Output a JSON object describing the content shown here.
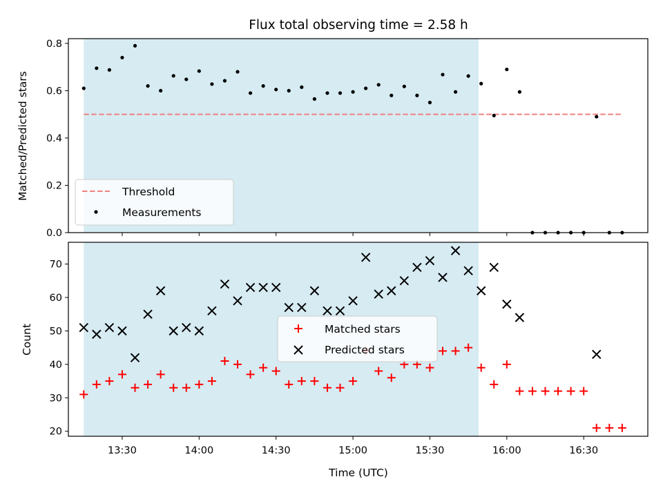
{
  "chart_data": {
    "type": "scatter",
    "title": "Flux total observing time = 2.58 h",
    "xlabel": "Time (UTC)",
    "x_tick_labels": [
      "13:30",
      "14:00",
      "14:30",
      "15:00",
      "15:30",
      "16:00",
      "16:30"
    ],
    "x_tick_times": [
      "13:30",
      "14:00",
      "14:30",
      "15:00",
      "15:30",
      "16:00",
      "16:30"
    ],
    "xlim": [
      "13:09",
      "16:55"
    ],
    "shaded_span": [
      "13:15",
      "15:49"
    ],
    "shade_color": "#add8e6",
    "top": {
      "ylabel": "Matched/Predicted stars",
      "ylim": [
        0,
        0.82
      ],
      "y_ticks": [
        0.0,
        0.2,
        0.4,
        0.6,
        0.8
      ],
      "y_tick_labels": [
        "0.0",
        "0.2",
        "0.4",
        "0.6",
        "0.8"
      ],
      "legend": {
        "placement": "lower-left",
        "entries": [
          "Threshold",
          "Measurements"
        ]
      },
      "threshold": {
        "name": "Threshold",
        "value": 0.5,
        "x_range": [
          "13:15",
          "16:45"
        ],
        "color": "#f08080",
        "style": "dashed"
      },
      "measurements": {
        "name": "Measurements",
        "color": "#000000",
        "x": [
          "13:15",
          "13:20",
          "13:25",
          "13:30",
          "13:35",
          "13:40",
          "13:45",
          "13:50",
          "13:55",
          "14:00",
          "14:05",
          "14:10",
          "14:15",
          "14:20",
          "14:25",
          "14:30",
          "14:35",
          "14:40",
          "14:45",
          "14:50",
          "14:55",
          "15:00",
          "15:05",
          "15:10",
          "15:15",
          "15:20",
          "15:25",
          "15:30",
          "15:35",
          "15:40",
          "15:45",
          "15:50",
          "15:55",
          "16:00",
          "16:05",
          "16:10",
          "16:15",
          "16:20",
          "16:25",
          "16:30",
          "16:35",
          "16:40",
          "16:45"
        ],
        "y": [
          0.61,
          0.695,
          0.688,
          0.74,
          0.79,
          0.62,
          0.6,
          0.663,
          0.648,
          0.683,
          0.628,
          0.642,
          0.68,
          0.59,
          0.62,
          0.605,
          0.6,
          0.615,
          0.565,
          0.59,
          0.59,
          0.595,
          0.61,
          0.625,
          0.58,
          0.618,
          0.58,
          0.55,
          0.668,
          0.595,
          0.662,
          0.63,
          0.495,
          0.69,
          0.595,
          0.0,
          0.0,
          0.0,
          0.0,
          0.0,
          0.49,
          0.0,
          0.0
        ]
      }
    },
    "bottom": {
      "ylabel": "Count",
      "ylim": [
        18.5,
        76.5
      ],
      "y_ticks": [
        20,
        30,
        40,
        50,
        60,
        70
      ],
      "y_tick_labels": [
        "20",
        "30",
        "40",
        "50",
        "60",
        "70"
      ],
      "legend": {
        "placement": "center",
        "entries": [
          "Matched stars",
          "Predicted stars"
        ]
      },
      "matched": {
        "name": "Matched stars",
        "color": "#ff0000",
        "marker": "+",
        "x": [
          "13:15",
          "13:20",
          "13:25",
          "13:30",
          "13:35",
          "13:40",
          "13:45",
          "13:50",
          "13:55",
          "14:00",
          "14:05",
          "14:10",
          "14:15",
          "14:20",
          "14:25",
          "14:30",
          "14:35",
          "14:40",
          "14:45",
          "14:50",
          "14:55",
          "15:00",
          "15:05",
          "15:10",
          "15:15",
          "15:20",
          "15:25",
          "15:30",
          "15:35",
          "15:40",
          "15:45",
          "15:50",
          "15:55",
          "16:00",
          "16:05",
          "16:10",
          "16:15",
          "16:20",
          "16:25",
          "16:30",
          "16:35",
          "16:40",
          "16:45"
        ],
        "y": [
          31,
          34,
          35,
          37,
          33,
          34,
          37,
          33,
          33,
          34,
          35,
          41,
          40,
          37,
          39,
          38,
          34,
          35,
          35,
          33,
          33,
          35,
          44,
          38,
          36,
          40,
          40,
          39,
          44,
          44,
          45,
          39,
          34,
          40,
          32,
          32,
          32,
          32,
          32,
          32,
          21,
          21,
          21
        ]
      },
      "predicted": {
        "name": "Predicted stars",
        "color": "#000000",
        "marker": "x",
        "x": [
          "13:15",
          "13:20",
          "13:25",
          "13:30",
          "13:35",
          "13:40",
          "13:45",
          "13:50",
          "13:55",
          "14:00",
          "14:05",
          "14:10",
          "14:15",
          "14:20",
          "14:25",
          "14:30",
          "14:35",
          "14:40",
          "14:45",
          "14:50",
          "14:55",
          "15:00",
          "15:05",
          "15:10",
          "15:15",
          "15:20",
          "15:25",
          "15:30",
          "15:35",
          "15:40",
          "15:45",
          "15:50",
          "15:55",
          "16:00",
          "16:05",
          "16:35"
        ],
        "y": [
          51,
          49,
          51,
          50,
          42,
          55,
          62,
          50,
          51,
          50,
          56,
          64,
          59,
          63,
          63,
          63,
          57,
          57,
          62,
          56,
          56,
          59,
          72,
          61,
          62,
          65,
          69,
          71,
          66,
          74,
          68,
          62,
          69,
          58,
          54,
          43
        ]
      }
    }
  }
}
